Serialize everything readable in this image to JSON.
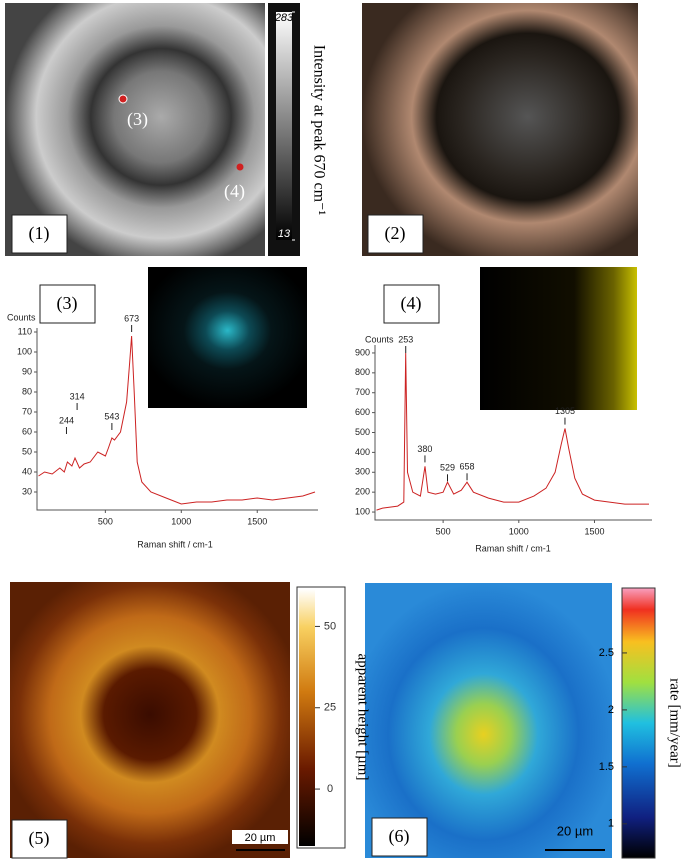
{
  "panels": {
    "labels": [
      "(1)",
      "(2)",
      "(3)",
      "(4)",
      "(5)",
      "(6)"
    ],
    "point_labels": [
      "(3)",
      "(4)"
    ]
  },
  "colorbars": [
    {
      "label": "Intensity at peak 670 cm⁻¹",
      "lim": [
        13,
        283
      ],
      "ticks": [
        283,
        13
      ]
    },
    {
      "label": "apparent height [µm]",
      "lim": [
        -17.5,
        61.5
      ],
      "ticks": [
        50,
        25,
        0
      ]
    },
    {
      "label": "rate [mm/year]",
      "lim": [
        0.7,
        3.07
      ],
      "ticks": [
        2.5,
        2,
        1.5,
        1
      ]
    }
  ],
  "scale_bars": [
    "20 µm",
    "20 µm"
  ],
  "chart_data": [
    {
      "type": "line",
      "ylabel": "Counts",
      "xlabel": "Raman shift / cm-1",
      "color": "#cc2222",
      "x": [
        60,
        100,
        150,
        200,
        230,
        250,
        280,
        300,
        330,
        360,
        400,
        450,
        500,
        520,
        543,
        560,
        600,
        640,
        660,
        673,
        690,
        710,
        740,
        800,
        900,
        1000,
        1100,
        1200,
        1300,
        1400,
        1500,
        1600,
        1700,
        1800,
        1880
      ],
      "values": [
        38,
        40,
        39,
        42,
        40,
        45,
        43,
        47,
        42,
        44,
        45,
        50,
        48,
        52,
        57,
        56,
        60,
        75,
        95,
        108,
        80,
        45,
        35,
        30,
        27,
        24,
        25,
        25,
        26,
        26,
        27,
        26,
        27,
        28,
        30
      ],
      "xlim": [
        50,
        1900
      ],
      "ylim": [
        21,
        112
      ],
      "xticks": [
        500,
        1000,
        1500
      ],
      "yticks": [
        30,
        40,
        50,
        60,
        70,
        80,
        90,
        100,
        110
      ],
      "annotations": [
        {
          "label": "244",
          "x": 244,
          "y": 64
        },
        {
          "label": "314",
          "x": 314,
          "y": 76
        },
        {
          "label": "543",
          "x": 543,
          "y": 66
        },
        {
          "label": "673",
          "x": 673,
          "y": 115
        }
      ]
    },
    {
      "type": "line",
      "ylabel": "Counts",
      "xlabel": "Raman shift / cm-1",
      "color": "#cc2222",
      "x": [
        60,
        100,
        200,
        240,
        253,
        265,
        300,
        350,
        380,
        400,
        450,
        500,
        529,
        570,
        620,
        658,
        700,
        800,
        900,
        1000,
        1100,
        1180,
        1240,
        1280,
        1305,
        1330,
        1370,
        1420,
        1500,
        1600,
        1700,
        1800,
        1860
      ],
      "values": [
        110,
        120,
        130,
        150,
        900,
        300,
        200,
        180,
        330,
        200,
        190,
        200,
        250,
        190,
        210,
        250,
        200,
        170,
        150,
        150,
        180,
        220,
        300,
        440,
        520,
        420,
        270,
        190,
        160,
        150,
        140,
        140,
        140
      ],
      "xlim": [
        50,
        1880
      ],
      "ylim": [
        60,
        940
      ],
      "xticks": [
        500,
        1000,
        1500
      ],
      "yticks": [
        100,
        200,
        300,
        400,
        500,
        600,
        700,
        800,
        900
      ],
      "annotations": [
        {
          "label": "253",
          "x": 253,
          "y": 950
        },
        {
          "label": "380",
          "x": 380,
          "y": 400
        },
        {
          "label": "529",
          "x": 529,
          "y": 305
        },
        {
          "label": "658",
          "x": 658,
          "y": 310
        },
        {
          "label": "1305",
          "x": 1305,
          "y": 590
        }
      ]
    }
  ]
}
